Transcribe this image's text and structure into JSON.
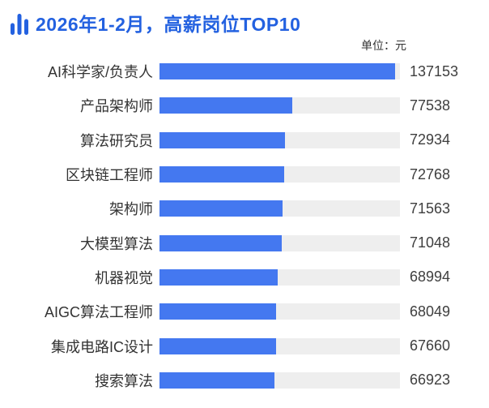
{
  "header": {
    "title": "2026年1-2月，高薪岗位TOP10",
    "unit_label": "单位：元"
  },
  "colors": {
    "accent": "#2361E0",
    "bar_fill": "#4478F0",
    "bar_track": "#EEEEEE",
    "label_text": "#333333",
    "value_text": "#3F3F3F",
    "background": "#FFFFFF"
  },
  "chart_data": {
    "type": "bar",
    "orientation": "horizontal",
    "title": "2026年1-2月，高薪岗位TOP10",
    "unit": "单位：元",
    "categories": [
      "AI科学家/负责人",
      "产品架构师",
      "算法研究员",
      "区块链工程师",
      "架构师",
      "大模型算法",
      "机器视觉",
      "AIGC算法工程师",
      "集成电路IC设计",
      "搜索算法"
    ],
    "values": [
      137153,
      77538,
      72934,
      72768,
      71563,
      71048,
      68994,
      68049,
      67660,
      66923
    ],
    "xlabel": "",
    "ylabel": "",
    "xlim": [
      0,
      140000
    ],
    "grid": false,
    "legend": false,
    "value_labels": "right"
  }
}
